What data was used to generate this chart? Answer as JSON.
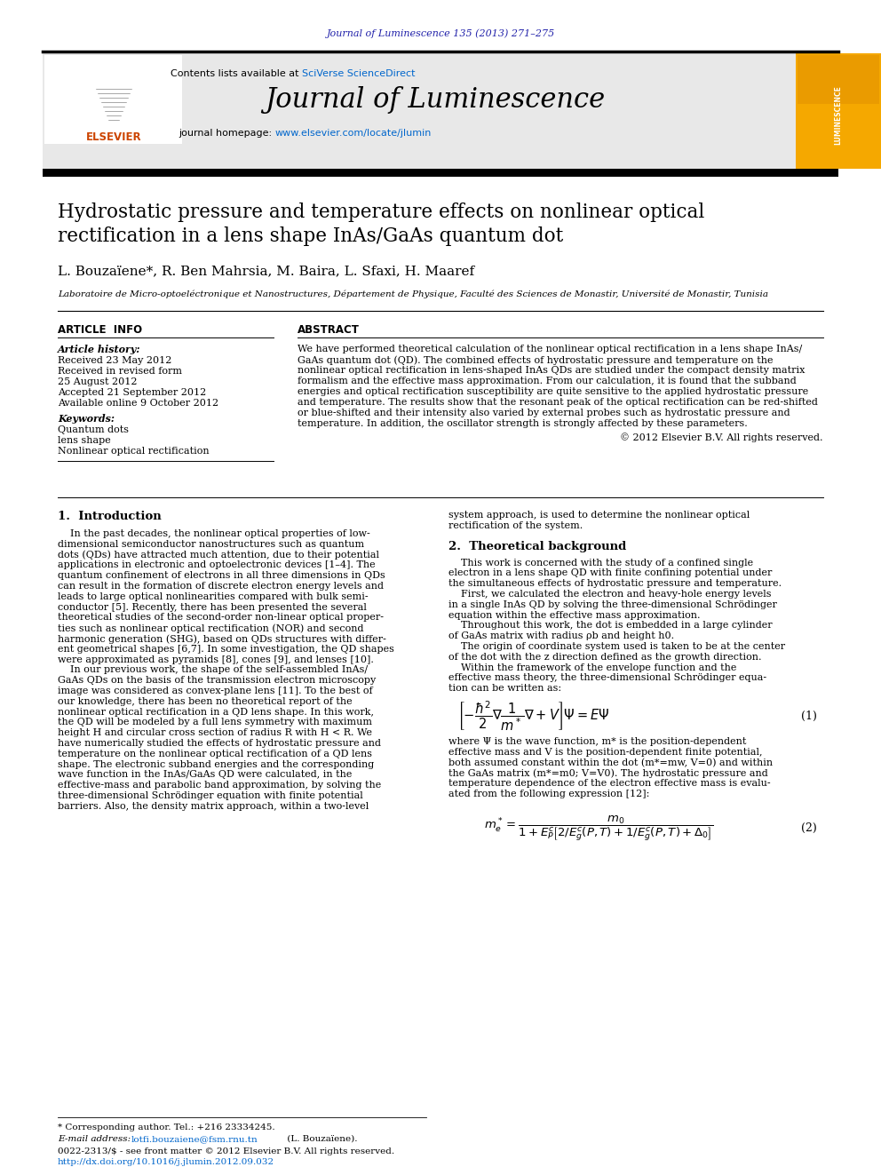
{
  "journal_header": "Journal of Luminescence 135 (2013) 271–275",
  "journal_name": "Journal of Luminescence",
  "contents_text": "Contents lists available at ",
  "sciverse_text": "SciVerse ScienceDirect",
  "homepage_text": "journal homepage: ",
  "homepage_url": "www.elsevier.com/locate/jlumin",
  "title": "Hydrostatic pressure and temperature effects on nonlinear optical\nrectification in a lens shape InAs/GaAs quantum dot",
  "authors": "L. Bouzaïene*, R. Ben Mahrsia, M. Baira, L. Sfaxi, H. Maaref",
  "affiliation": "Laboratoire de Micro-optoeléctronique et Nanostructures, Département de Physique, Faculté des Sciences de Monastir, Université de Monastir, Tunisia",
  "article_info_title": "ARTICLE  INFO",
  "abstract_title": "ABSTRACT",
  "article_history_title": "Article history:",
  "received1": "Received 23 May 2012",
  "received2": "Received in revised form",
  "received2b": "25 August 2012",
  "accepted": "Accepted 21 September 2012",
  "available": "Available online 9 October 2012",
  "keywords_title": "Keywords:",
  "keyword1": "Quantum dots",
  "keyword2": "lens shape",
  "keyword3": "Nonlinear optical rectification",
  "abstract_text": "We have performed theoretical calculation of the nonlinear optical rectification in a lens shape InAs/\nGaAs quantum dot (QD). The combined effects of hydrostatic pressure and temperature on the\nnonlinear optical rectification in lens-shaped InAs QDs are studied under the compact density matrix\nformalism and the effective mass approximation. From our calculation, it is found that the subband\nenergies and optical rectification susceptibility are quite sensitive to the applied hydrostatic pressure\nand temperature. The results show that the resonant peak of the optical rectification can be red-shifted\nor blue-shifted and their intensity also varied by external probes such as hydrostatic pressure and\ntemperature. In addition, the oscillator strength is strongly affected by these parameters.",
  "copyright": "© 2012 Elsevier B.V. All rights reserved.",
  "sec1_title": "1.  Introduction",
  "sec1_col1_lines": [
    "    In the past decades, the nonlinear optical properties of low-",
    "dimensional semiconductor nanostructures such as quantum",
    "dots (QDs) have attracted much attention, due to their potential",
    "applications in electronic and optoelectronic devices [1–4]. The",
    "quantum confinement of electrons in all three dimensions in QDs",
    "can result in the formation of discrete electron energy levels and",
    "leads to large optical nonlinearities compared with bulk semi-",
    "conductor [5]. Recently, there has been presented the several",
    "theoretical studies of the second-order non-linear optical proper-",
    "ties such as nonlinear optical rectification (NOR) and second",
    "harmonic generation (SHG), based on QDs structures with differ-",
    "ent geometrical shapes [6,7]. In some investigation, the QD shapes",
    "were approximated as pyramids [8], cones [9], and lenses [10].",
    "    In our previous work, the shape of the self-assembled InAs/",
    "GaAs QDs on the basis of the transmission electron microscopy",
    "image was considered as convex-plane lens [11]. To the best of",
    "our knowledge, there has been no theoretical report of the",
    "nonlinear optical rectification in a QD lens shape. In this work,",
    "the QD will be modeled by a full lens symmetry with maximum",
    "height H and circular cross section of radius R with H < R. We",
    "have numerically studied the effects of hydrostatic pressure and",
    "temperature on the nonlinear optical rectification of a QD lens",
    "shape. The electronic subband energies and the corresponding",
    "wave function in the InAs/GaAs QD were calculated, in the",
    "effective-mass and parabolic band approximation, by solving the",
    "three-dimensional Schrödinger equation with finite potential",
    "barriers. Also, the density matrix approach, within a two-level"
  ],
  "sec1_col2_lines": [
    "system approach, is used to determine the nonlinear optical",
    "rectification of the system."
  ],
  "sec2_title": "2.  Theoretical background",
  "sec2_col2_lines": [
    "    This work is concerned with the study of a confined single",
    "electron in a lens shape QD with finite confining potential under",
    "the simultaneous effects of hydrostatic pressure and temperature.",
    "    First, we calculated the electron and heavy-hole energy levels",
    "in a single InAs QD by solving the three-dimensional Schrödinger",
    "equation within the effective mass approximation.",
    "    Throughout this work, the dot is embedded in a large cylinder",
    "of GaAs matrix with radius ρb and height h0.",
    "    The origin of coordinate system used is taken to be at the center",
    "of the dot with the z direction defined as the growth direction.",
    "    Within the framework of the envelope function and the",
    "effective mass theory, the three-dimensional Schrödinger equa-",
    "tion can be written as:"
  ],
  "eq1_label": "(1)",
  "where_lines": [
    "where Ψ is the wave function, m* is the position-dependent",
    "effective mass and V is the position-dependent finite potential,",
    "both assumed constant within the dot (m*=mw, V=0) and within",
    "the GaAs matrix (m*=m0; V=V0). The hydrostatic pressure and",
    "temperature dependence of the electron effective mass is evalu-",
    "ated from the following expression [12]:"
  ],
  "eq2_label": "(2)",
  "footnote": "* Corresponding author. Tel.: +216 23334245.",
  "email_label": "E-mail address: ",
  "email": "lotfi.bouzaiene@fsm.rnu.tn",
  "email_suffix": " (L. Bouzaïene).",
  "issn_text": "0022-2313/$ - see front matter © 2012 Elsevier B.V. All rights reserved.",
  "doi_text": "http://dx.doi.org/10.1016/j.jlumin.2012.09.032",
  "header_bg_color": "#e8e8e8",
  "journal_color": "#2222aa",
  "sciverse_color": "#0066cc",
  "url_color": "#0066cc",
  "luminescence_bg": "#f5a800"
}
